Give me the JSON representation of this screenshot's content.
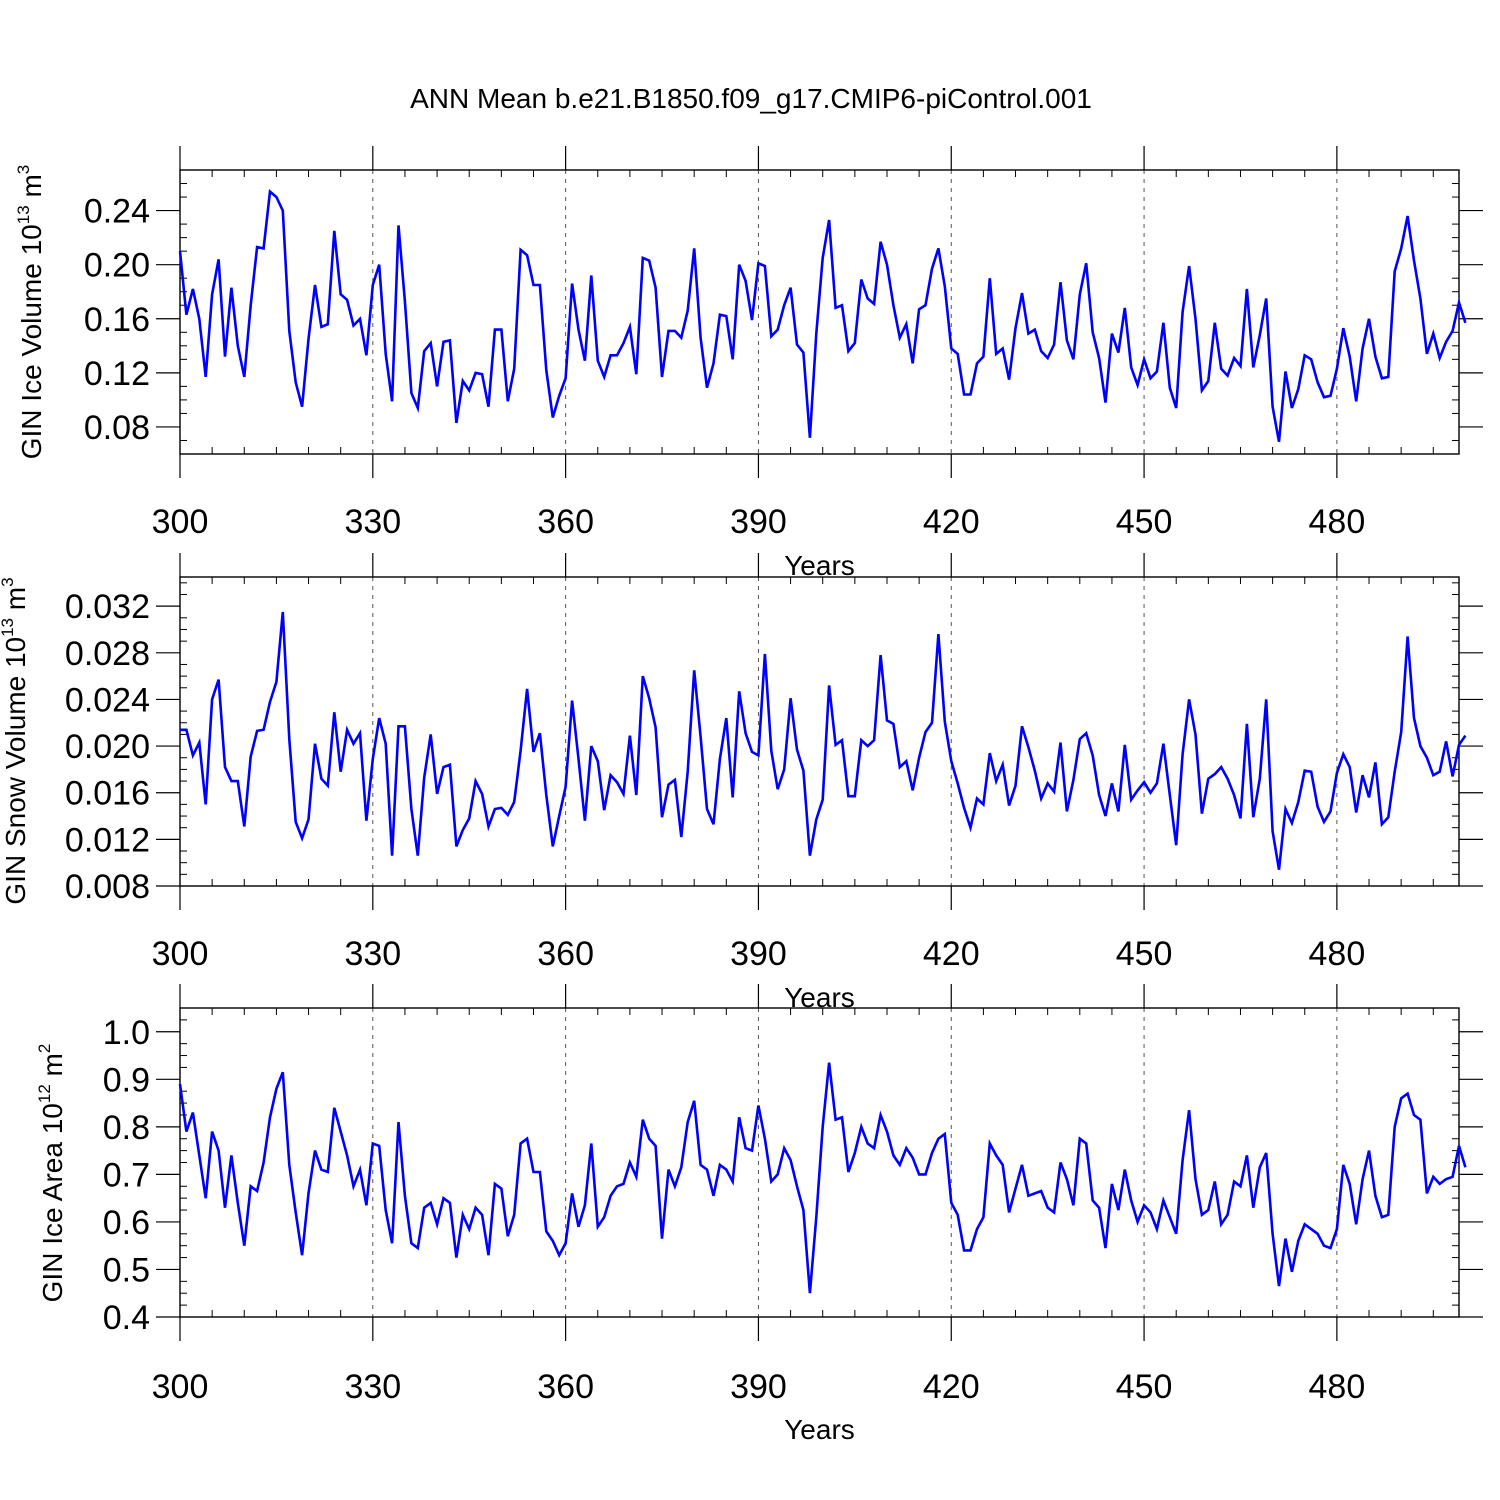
{
  "chart_data": [
    {
      "type": "line",
      "title": "ANN Mean b.e21.B1850.f09_g17.CMIP6-piControl.001",
      "xlabel": "Years",
      "ylabel": "GIN Ice Volume 10",
      "ylabel_sup": "13",
      "ylabel_unit": " m",
      "ylabel_unit_sup": "3",
      "xlim": [
        300,
        499
      ],
      "ylim": [
        0.06,
        0.27
      ],
      "xticks": [
        "300",
        "330",
        "360",
        "390",
        "420",
        "450",
        "480"
      ],
      "yticks": [
        "0.08",
        "0.12",
        "0.16",
        "0.20",
        "0.24"
      ],
      "color": "#0000ff",
      "x_start": 300,
      "values": [
        0.21,
        0.163,
        0.182,
        0.16,
        0.117,
        0.178,
        0.204,
        0.132,
        0.183,
        0.14,
        0.117,
        0.17,
        0.213,
        0.212,
        0.254,
        0.25,
        0.24,
        0.151,
        0.113,
        0.095,
        0.145,
        0.185,
        0.154,
        0.156,
        0.225,
        0.178,
        0.174,
        0.155,
        0.16,
        0.133,
        0.185,
        0.2,
        0.134,
        0.099,
        0.229,
        0.173,
        0.105,
        0.094,
        0.136,
        0.142,
        0.11,
        0.143,
        0.144,
        0.083,
        0.114,
        0.107,
        0.12,
        0.119,
        0.095,
        0.152,
        0.152,
        0.099,
        0.123,
        0.211,
        0.207,
        0.185,
        0.185,
        0.122,
        0.087,
        0.103,
        0.116,
        0.186,
        0.152,
        0.129,
        0.192,
        0.129,
        0.117,
        0.133,
        0.133,
        0.142,
        0.154,
        0.119,
        0.205,
        0.203,
        0.183,
        0.117,
        0.151,
        0.151,
        0.146,
        0.166,
        0.212,
        0.146,
        0.109,
        0.127,
        0.163,
        0.162,
        0.13,
        0.2,
        0.188,
        0.159,
        0.201,
        0.199,
        0.147,
        0.152,
        0.17,
        0.183,
        0.141,
        0.135,
        0.072,
        0.149,
        0.205,
        0.233,
        0.168,
        0.17,
        0.136,
        0.142,
        0.189,
        0.175,
        0.171,
        0.217,
        0.2,
        0.17,
        0.146,
        0.156,
        0.127,
        0.167,
        0.17,
        0.197,
        0.212,
        0.184,
        0.138,
        0.134,
        0.104,
        0.104,
        0.127,
        0.132,
        0.19,
        0.134,
        0.138,
        0.115,
        0.153,
        0.179,
        0.149,
        0.152,
        0.136,
        0.131,
        0.141,
        0.187,
        0.144,
        0.13,
        0.178,
        0.201,
        0.15,
        0.131,
        0.098,
        0.149,
        0.135,
        0.168,
        0.124,
        0.111,
        0.13,
        0.116,
        0.121,
        0.157,
        0.109,
        0.094,
        0.165,
        0.199,
        0.16,
        0.107,
        0.114,
        0.157,
        0.123,
        0.118,
        0.131,
        0.125,
        0.182,
        0.124,
        0.148,
        0.175,
        0.095,
        0.069,
        0.121,
        0.094,
        0.108,
        0.133,
        0.13,
        0.113,
        0.102,
        0.103,
        0.123,
        0.153,
        0.132,
        0.099,
        0.138,
        0.16,
        0.132,
        0.116,
        0.117,
        0.195,
        0.212,
        0.236,
        0.203,
        0.175,
        0.134,
        0.149,
        0.131,
        0.143,
        0.151,
        0.172,
        0.157
      ]
    },
    {
      "type": "line",
      "xlabel": "Years",
      "ylabel": "GIN Snow Volume 10",
      "ylabel_sup": "13",
      "ylabel_unit": " m",
      "ylabel_unit_sup": "3",
      "xlim": [
        300,
        499
      ],
      "ylim": [
        0.008,
        0.0345
      ],
      "xticks": [
        "300",
        "330",
        "360",
        "390",
        "420",
        "450",
        "480"
      ],
      "yticks": [
        "0.008",
        "0.012",
        "0.016",
        "0.020",
        "0.024",
        "0.028",
        "0.032"
      ],
      "color": "#0000ff",
      "x_start": 300,
      "values": [
        0.0214,
        0.0214,
        0.0192,
        0.0203,
        0.015,
        0.024,
        0.0257,
        0.0182,
        0.017,
        0.017,
        0.0131,
        0.0191,
        0.0213,
        0.0214,
        0.0238,
        0.0255,
        0.0315,
        0.0206,
        0.0135,
        0.0121,
        0.0137,
        0.0202,
        0.0172,
        0.0166,
        0.0229,
        0.0178,
        0.0214,
        0.0202,
        0.0211,
        0.0136,
        0.0189,
        0.0224,
        0.0202,
        0.0106,
        0.0217,
        0.0217,
        0.0146,
        0.0106,
        0.0173,
        0.021,
        0.0159,
        0.0182,
        0.0184,
        0.0114,
        0.0128,
        0.0138,
        0.017,
        0.0159,
        0.0131,
        0.0146,
        0.0147,
        0.0141,
        0.0152,
        0.0196,
        0.0249,
        0.0195,
        0.0211,
        0.0158,
        0.0114,
        0.014,
        0.0165,
        0.0239,
        0.0189,
        0.0136,
        0.02,
        0.0187,
        0.0145,
        0.0175,
        0.0169,
        0.0159,
        0.0209,
        0.0158,
        0.026,
        0.0241,
        0.0216,
        0.0139,
        0.0167,
        0.0171,
        0.0122,
        0.0178,
        0.0265,
        0.0208,
        0.0146,
        0.0133,
        0.0189,
        0.0224,
        0.0156,
        0.0247,
        0.0211,
        0.0195,
        0.0192,
        0.0279,
        0.0196,
        0.0163,
        0.018,
        0.0241,
        0.0197,
        0.0179,
        0.0106,
        0.0137,
        0.0154,
        0.0252,
        0.0201,
        0.0205,
        0.0157,
        0.0157,
        0.0205,
        0.02,
        0.0205,
        0.0278,
        0.0222,
        0.0219,
        0.0182,
        0.0187,
        0.0162,
        0.019,
        0.0212,
        0.022,
        0.0296,
        0.0221,
        0.0187,
        0.0168,
        0.0147,
        0.013,
        0.0155,
        0.015,
        0.0194,
        0.017,
        0.0184,
        0.0149,
        0.0166,
        0.0217,
        0.0199,
        0.0179,
        0.0155,
        0.0168,
        0.0161,
        0.0203,
        0.0144,
        0.0171,
        0.0206,
        0.0211,
        0.0192,
        0.0158,
        0.014,
        0.0168,
        0.0144,
        0.0201,
        0.0154,
        0.0162,
        0.0169,
        0.016,
        0.0168,
        0.0202,
        0.0158,
        0.0115,
        0.0193,
        0.024,
        0.021,
        0.0142,
        0.0172,
        0.0176,
        0.0182,
        0.0172,
        0.0158,
        0.0138,
        0.0219,
        0.0139,
        0.0172,
        0.024,
        0.0127,
        0.0094,
        0.0146,
        0.0134,
        0.0152,
        0.0179,
        0.0178,
        0.0148,
        0.0135,
        0.0144,
        0.0177,
        0.0193,
        0.0182,
        0.0143,
        0.0175,
        0.0156,
        0.0186,
        0.0133,
        0.0139,
        0.0178,
        0.0212,
        0.0294,
        0.0224,
        0.02,
        0.019,
        0.0175,
        0.0178,
        0.0204,
        0.0174,
        0.0201,
        0.0209
      ]
    },
    {
      "type": "line",
      "xlabel": "Years",
      "ylabel": "GIN Ice Area 10",
      "ylabel_sup": "12",
      "ylabel_unit": " m",
      "ylabel_unit_sup": "2",
      "xlim": [
        300,
        499
      ],
      "ylim": [
        0.4,
        1.05
      ],
      "xticks": [
        "300",
        "330",
        "360",
        "390",
        "420",
        "450",
        "480"
      ],
      "yticks": [
        "0.4",
        "0.5",
        "0.6",
        "0.7",
        "0.8",
        "0.9",
        "1.0"
      ],
      "color": "#0000ff",
      "x_start": 300,
      "values": [
        0.89,
        0.79,
        0.83,
        0.74,
        0.65,
        0.79,
        0.75,
        0.63,
        0.74,
        0.64,
        0.55,
        0.675,
        0.665,
        0.725,
        0.82,
        0.88,
        0.915,
        0.72,
        0.62,
        0.53,
        0.66,
        0.75,
        0.71,
        0.705,
        0.84,
        0.79,
        0.74,
        0.675,
        0.71,
        0.635,
        0.765,
        0.76,
        0.625,
        0.555,
        0.81,
        0.655,
        0.555,
        0.545,
        0.63,
        0.64,
        0.595,
        0.65,
        0.64,
        0.525,
        0.615,
        0.585,
        0.63,
        0.615,
        0.53,
        0.68,
        0.67,
        0.57,
        0.615,
        0.765,
        0.775,
        0.705,
        0.705,
        0.58,
        0.56,
        0.53,
        0.555,
        0.66,
        0.59,
        0.635,
        0.765,
        0.59,
        0.61,
        0.655,
        0.675,
        0.68,
        0.725,
        0.695,
        0.815,
        0.775,
        0.76,
        0.565,
        0.71,
        0.675,
        0.715,
        0.81,
        0.855,
        0.72,
        0.71,
        0.655,
        0.72,
        0.71,
        0.685,
        0.82,
        0.755,
        0.75,
        0.845,
        0.775,
        0.685,
        0.7,
        0.755,
        0.73,
        0.675,
        0.625,
        0.45,
        0.61,
        0.8,
        0.935,
        0.815,
        0.82,
        0.705,
        0.745,
        0.8,
        0.765,
        0.755,
        0.825,
        0.79,
        0.74,
        0.72,
        0.755,
        0.735,
        0.7,
        0.7,
        0.745,
        0.775,
        0.785,
        0.64,
        0.615,
        0.54,
        0.54,
        0.585,
        0.61,
        0.765,
        0.74,
        0.72,
        0.62,
        0.67,
        0.72,
        0.655,
        0.66,
        0.665,
        0.63,
        0.62,
        0.725,
        0.69,
        0.635,
        0.775,
        0.765,
        0.645,
        0.63,
        0.545,
        0.68,
        0.625,
        0.71,
        0.645,
        0.6,
        0.635,
        0.62,
        0.585,
        0.645,
        0.61,
        0.575,
        0.73,
        0.835,
        0.69,
        0.615,
        0.625,
        0.685,
        0.595,
        0.615,
        0.685,
        0.675,
        0.74,
        0.63,
        0.715,
        0.745,
        0.575,
        0.465,
        0.565,
        0.495,
        0.56,
        0.595,
        0.585,
        0.575,
        0.55,
        0.545,
        0.585,
        0.72,
        0.68,
        0.595,
        0.69,
        0.75,
        0.655,
        0.61,
        0.615,
        0.8,
        0.86,
        0.87,
        0.825,
        0.815,
        0.66,
        0.695,
        0.68,
        0.69,
        0.695,
        0.76,
        0.715
      ]
    }
  ]
}
